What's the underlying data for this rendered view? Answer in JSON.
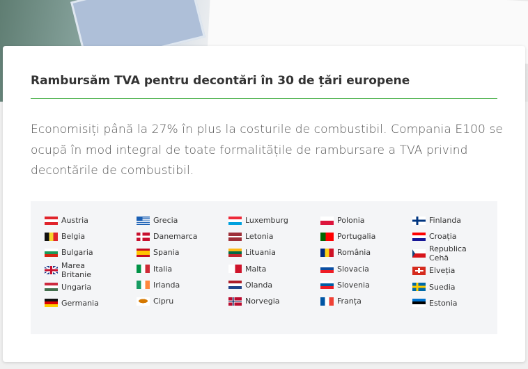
{
  "card": {
    "title": "Rambursăm TVA pentru decontări în 30 de țări europene",
    "text": "Economisiți până la 27% în plus la costurile de combustibil. Compania E100 se ocupă în mod integral de toate formalitățile de rambursare a TVA privind decontările de combustibil."
  },
  "countries": {
    "columns": [
      [
        "Austria",
        "Belgia",
        "Bulgaria",
        "Marea Britanie",
        "Ungaria",
        "Germania"
      ],
      [
        "Grecia",
        "Danemarca",
        "Spania",
        "Italia",
        "Irlanda",
        "Cipru"
      ],
      [
        "Luxemburg",
        "Letonia",
        "Lituania",
        "Malta",
        "Olanda",
        "Norvegia"
      ],
      [
        "Polonia",
        "Portugalia",
        "România",
        "Slovacia",
        "Slovenia",
        "Franța"
      ],
      [
        "Finlanda",
        "Croația",
        "Republica Cehă",
        "Elveția",
        "Suedia",
        "Estonia"
      ]
    ]
  }
}
